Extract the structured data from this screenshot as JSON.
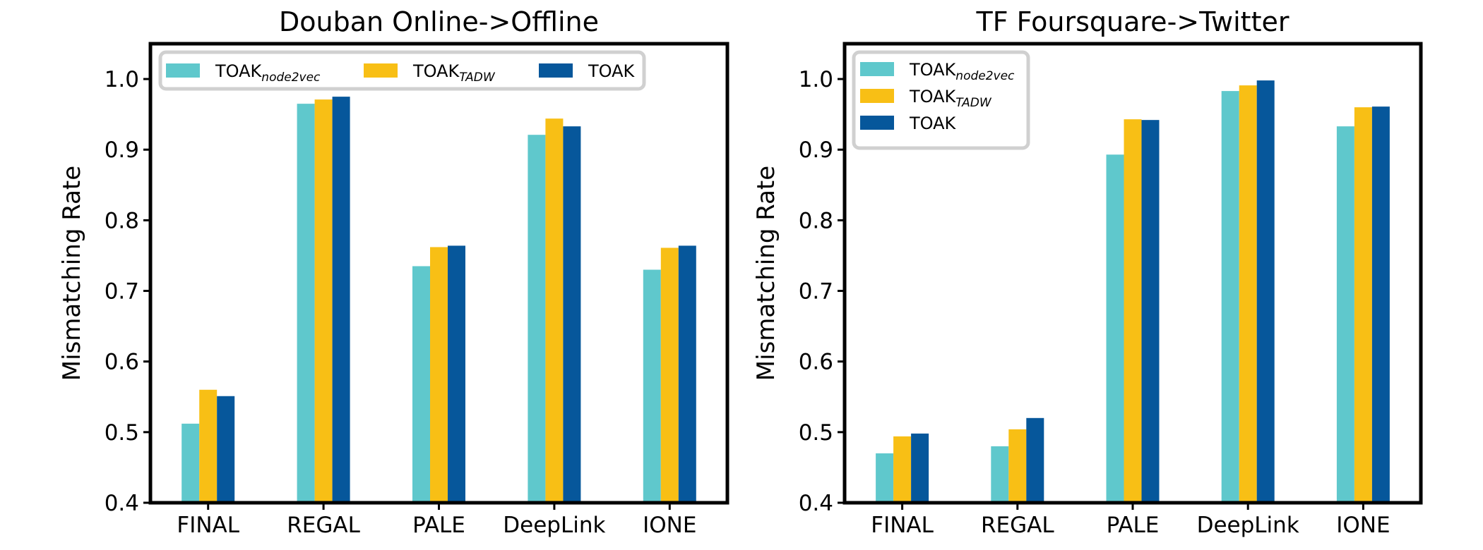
{
  "colors": {
    "series": [
      "#5fc8cc",
      "#f8bf15",
      "#06579b"
    ],
    "axis": "#000000",
    "legend_border": "#d0d0d0"
  },
  "chart_data": [
    {
      "type": "bar",
      "title": "Douban Online->Offline",
      "xlabel": "",
      "ylabel": "Mismatching Rate",
      "ylim": [
        0.4,
        1.05
      ],
      "yticks": [
        "0.4",
        "0.5",
        "0.6",
        "0.7",
        "0.8",
        "0.9",
        "1.0"
      ],
      "categories": [
        "FINAL",
        "REGAL",
        "PALE",
        "DeepLink",
        "IONE"
      ],
      "legend": {
        "placement": "top, horizontal",
        "entries": [
          {
            "base": "TOAK",
            "sub": "node2vec"
          },
          {
            "base": "TOAK",
            "sub": "TADW"
          },
          {
            "base": "TOAK",
            "sub": ""
          }
        ]
      },
      "series": [
        {
          "name": "TOAK node2vec",
          "values": [
            0.512,
            0.965,
            0.735,
            0.921,
            0.73
          ]
        },
        {
          "name": "TOAK TADW",
          "values": [
            0.56,
            0.971,
            0.762,
            0.944,
            0.761
          ]
        },
        {
          "name": "TOAK",
          "values": [
            0.551,
            0.975,
            0.764,
            0.933,
            0.764
          ]
        }
      ]
    },
    {
      "type": "bar",
      "title": "TF Foursquare->Twitter",
      "xlabel": "",
      "ylabel": "Mismatching Rate",
      "ylim": [
        0.4,
        1.05
      ],
      "yticks": [
        "0.4",
        "0.5",
        "0.6",
        "0.7",
        "0.8",
        "0.9",
        "1.0"
      ],
      "categories": [
        "FINAL",
        "REGAL",
        "PALE",
        "DeepLink",
        "IONE"
      ],
      "legend": {
        "placement": "top-left, vertical",
        "entries": [
          {
            "base": "TOAK",
            "sub": "node2vec"
          },
          {
            "base": "TOAK",
            "sub": "TADW"
          },
          {
            "base": "TOAK",
            "sub": ""
          }
        ]
      },
      "series": [
        {
          "name": "TOAK node2vec",
          "values": [
            0.47,
            0.48,
            0.893,
            0.983,
            0.933
          ]
        },
        {
          "name": "TOAK TADW",
          "values": [
            0.494,
            0.504,
            0.943,
            0.991,
            0.96
          ]
        },
        {
          "name": "TOAK",
          "values": [
            0.498,
            0.52,
            0.942,
            0.998,
            0.961
          ]
        }
      ]
    }
  ]
}
